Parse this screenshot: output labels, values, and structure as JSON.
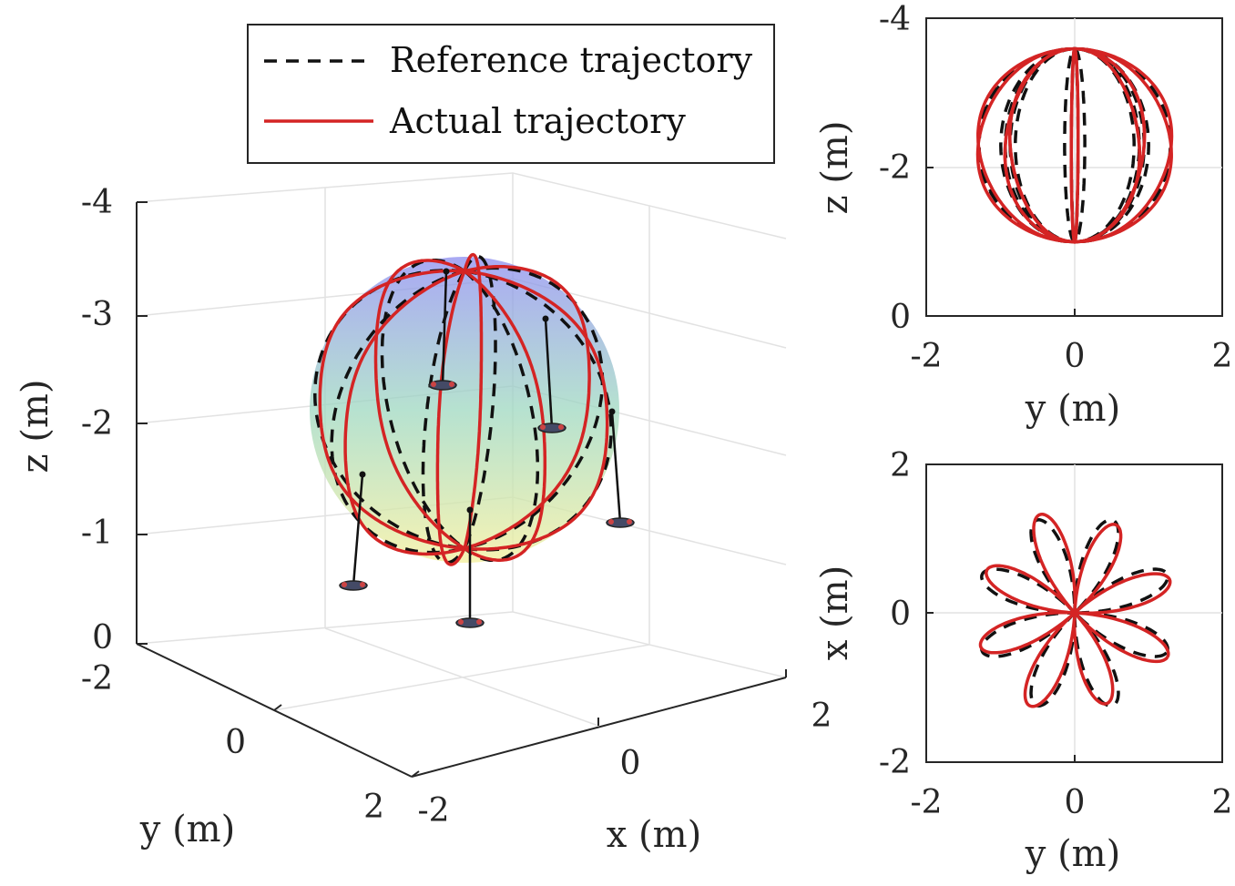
{
  "legend": {
    "reference": "Reference trajectory",
    "actual": "Actual trajectory"
  },
  "colors": {
    "reference": "#111111",
    "actual": "#d42424",
    "sphere_top": "#8c8cf0",
    "sphere_mid": "#9ed8c0",
    "sphere_bottom": "#f4f0a0"
  },
  "chart_data": [
    {
      "type": "line",
      "view": "3D",
      "xlabel": "x (m)",
      "ylabel": "y (m)",
      "zlabel": "z (m)",
      "xlim": [
        -2,
        2
      ],
      "ylim": [
        -2,
        2
      ],
      "zlim": [
        0,
        -4
      ],
      "x_ticks": [
        "-2",
        "0",
        "2"
      ],
      "y_ticks": [
        "-2",
        "0",
        "2"
      ],
      "z_ticks": [
        "0",
        "-1",
        "-2",
        "-3",
        "-4"
      ],
      "sphere": {
        "center": [
          0,
          0,
          -2.3
        ],
        "radius": 1.3
      },
      "series": [
        {
          "name": "Reference trajectory",
          "style": "dashed",
          "petals": 8,
          "radius": 1.3,
          "center_z": -2.3
        },
        {
          "name": "Actual trajectory",
          "style": "solid",
          "petals": 8,
          "radius": 1.3,
          "center_z": -2.3
        }
      ],
      "quadrotors": 5
    },
    {
      "type": "line",
      "view": "y-z",
      "xlabel": "y (m)",
      "ylabel": "z (m)",
      "xlim": [
        -2,
        2
      ],
      "ylim": [
        0,
        -4
      ],
      "x_ticks": [
        "-2",
        "0",
        "2"
      ],
      "y_ticks": [
        "-4",
        "-2",
        "0"
      ]
    },
    {
      "type": "line",
      "view": "y-x",
      "xlabel": "y (m)",
      "ylabel": "x (m)",
      "xlim": [
        -2,
        2
      ],
      "ylim": [
        -2,
        2
      ],
      "x_ticks": [
        "-2",
        "0",
        "2"
      ],
      "y_ticks": [
        "2",
        "0",
        "-2"
      ],
      "petal_angles_deg": [
        8,
        52,
        96,
        140,
        184,
        228,
        272,
        316
      ],
      "petal_length": 1.35
    }
  ]
}
